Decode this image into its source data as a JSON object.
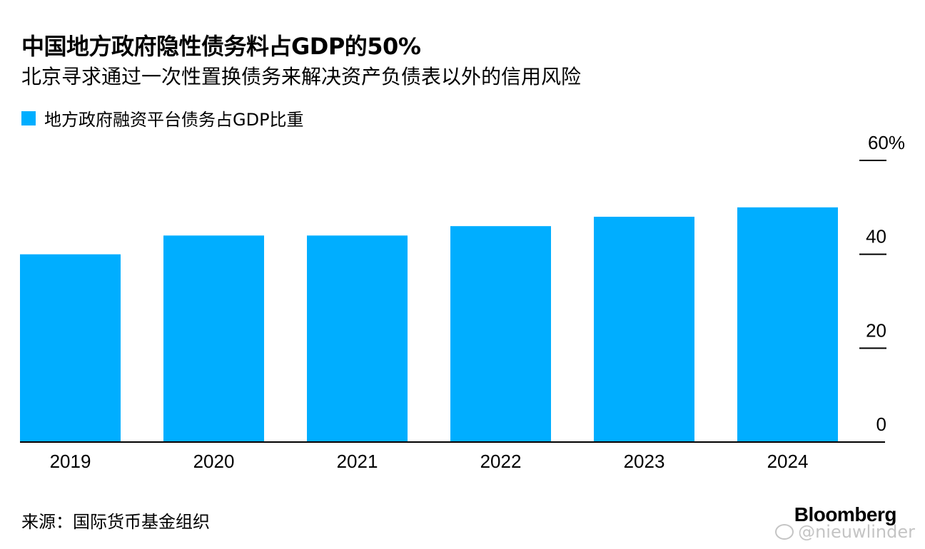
{
  "chart_data": {
    "type": "bar",
    "title": "中国地方政府隐性债务料占GDP的50%",
    "subtitle": "北京寻求通过一次性置换债务来解决资产负债表以外的信用风险",
    "categories": [
      "2019",
      "2020",
      "2021",
      "2022",
      "2023",
      "2024"
    ],
    "series": [
      {
        "name": "地方政府融资平台债务占GDP比重",
        "values": [
          40,
          44,
          44,
          46,
          48,
          50
        ],
        "color": "#00aeff"
      }
    ],
    "y_ticks": [
      0,
      20,
      40,
      60
    ],
    "y_tick_labels": [
      "0",
      "20",
      "40",
      "60%"
    ],
    "ylim": [
      0,
      60
    ],
    "y_axis_position": "right",
    "grid": false,
    "legend_position": "top-left",
    "source": "来源：国际货币基金组织",
    "brand": "Bloomberg"
  },
  "watermark": "@nieuwlinder"
}
